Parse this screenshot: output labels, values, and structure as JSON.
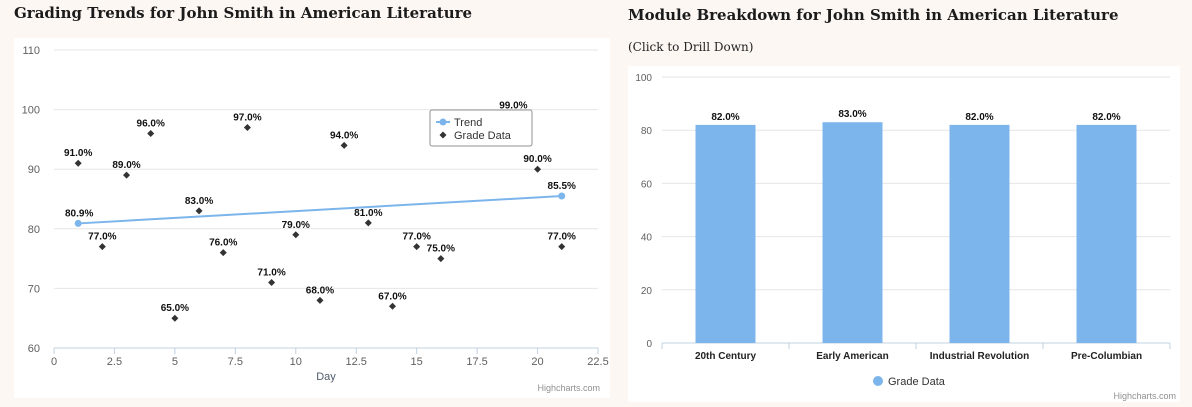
{
  "left_panel": {
    "title": "Grading Trends for John Smith in American Literature"
  },
  "right_panel": {
    "title": "Module Breakdown for John Smith in American Literature",
    "subtitle": "(Click to Drill Down)"
  },
  "chart_data": [
    {
      "type": "scatter",
      "title": "",
      "xlabel": "Day",
      "ylabel": "",
      "xlim": [
        0,
        22.5
      ],
      "ylim": [
        60,
        110
      ],
      "x_ticks": [
        "0",
        "2.5",
        "5",
        "7.5",
        "10",
        "12.5",
        "15",
        "17.5",
        "20",
        "22.5"
      ],
      "y_ticks": [
        "60",
        "70",
        "80",
        "90",
        "100",
        "110"
      ],
      "grid": true,
      "legend_position": "top-right",
      "credit": "Highcharts.com",
      "series": [
        {
          "name": "Trend",
          "kind": "line",
          "color": "#7cb5ec",
          "points": [
            {
              "x": 1,
              "y": 80.9,
              "label": "80.9%"
            },
            {
              "x": 21,
              "y": 85.5,
              "label": "85.5%"
            }
          ]
        },
        {
          "name": "Grade Data",
          "kind": "scatter",
          "marker": "diamond",
          "color": "#333333",
          "points": [
            {
              "x": 1,
              "y": 91,
              "label": "91.0%"
            },
            {
              "x": 2,
              "y": 77,
              "label": "77.0%"
            },
            {
              "x": 3,
              "y": 89,
              "label": "89.0%"
            },
            {
              "x": 4,
              "y": 96,
              "label": "96.0%"
            },
            {
              "x": 5,
              "y": 65,
              "label": "65.0%"
            },
            {
              "x": 6,
              "y": 83,
              "label": "83.0%"
            },
            {
              "x": 7,
              "y": 76,
              "label": "76.0%"
            },
            {
              "x": 8,
              "y": 97,
              "label": "97.0%"
            },
            {
              "x": 9,
              "y": 71,
              "label": "71.0%"
            },
            {
              "x": 10,
              "y": 79,
              "label": "79.0%"
            },
            {
              "x": 11,
              "y": 68,
              "label": "68.0%"
            },
            {
              "x": 12,
              "y": 94,
              "label": "94.0%"
            },
            {
              "x": 13,
              "y": 81,
              "label": "81.0%"
            },
            {
              "x": 14,
              "y": 67,
              "label": "67.0%"
            },
            {
              "x": 15,
              "y": 77,
              "label": "77.0%"
            },
            {
              "x": 16,
              "y": 75,
              "label": "75.0%"
            },
            {
              "x": 19,
              "y": 99,
              "label": "99.0%"
            },
            {
              "x": 20,
              "y": 90,
              "label": "90.0%"
            },
            {
              "x": 21,
              "y": 77,
              "label": "77.0%"
            }
          ]
        }
      ]
    },
    {
      "type": "bar",
      "title": "",
      "xlabel": "",
      "ylabel": "",
      "ylim": [
        0,
        100
      ],
      "y_ticks": [
        "0",
        "20",
        "40",
        "60",
        "80",
        "100"
      ],
      "grid": true,
      "legend_position": "bottom-center",
      "credit": "Highcharts.com",
      "categories": [
        "20th Century",
        "Early American",
        "Industrial Revolution",
        "Pre-Columbian"
      ],
      "series": [
        {
          "name": "Grade Data",
          "color": "#7cb5ec",
          "values": [
            82,
            83,
            82,
            82
          ],
          "labels": [
            "82.0%",
            "83.0%",
            "82.0%",
            "82.0%"
          ]
        }
      ]
    }
  ]
}
